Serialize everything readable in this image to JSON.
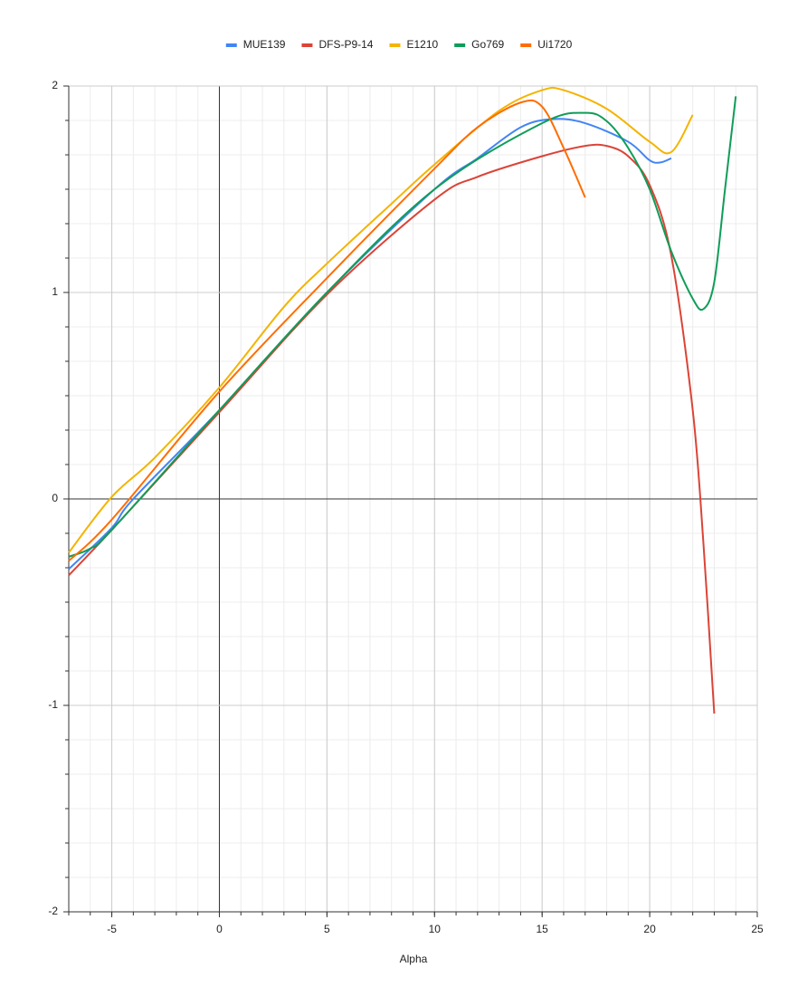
{
  "chart_data": {
    "type": "line",
    "x_label": "Alpha",
    "xlim": [
      -7,
      25
    ],
    "xticks": [
      -5,
      0,
      5,
      10,
      15,
      20,
      25
    ],
    "ylim": [
      -2,
      2
    ],
    "yticks": [
      -2,
      -1,
      0,
      1,
      2
    ],
    "grid": true,
    "minor_grid": true,
    "smooth": true,
    "legend": "top",
    "series": [
      {
        "name": "MUE139",
        "color": "#4285f4",
        "x": [
          -7,
          -5,
          -4,
          0,
          5,
          10,
          12,
          14,
          15.5,
          17,
          19,
          20,
          20.5,
          21
        ],
        "values": [
          -0.34,
          -0.14,
          0,
          0.43,
          1.0,
          1.5,
          1.65,
          1.8,
          1.84,
          1.82,
          1.73,
          1.64,
          1.63,
          1.65
        ]
      },
      {
        "name": "DFS-P9-14",
        "color": "#db4437",
        "x": [
          -7,
          -5,
          0,
          5,
          10,
          12,
          15,
          17,
          18,
          19,
          20,
          21,
          22,
          22.5,
          23
        ],
        "values": [
          -0.37,
          -0.15,
          0.42,
          0.99,
          1.45,
          1.56,
          1.66,
          1.71,
          1.71,
          1.66,
          1.52,
          1.18,
          0.43,
          -0.22,
          -1.04
        ]
      },
      {
        "name": "E1210",
        "color": "#f4b400",
        "x": [
          -7,
          -5,
          -3,
          0,
          3,
          5,
          8,
          10,
          13,
          15,
          16,
          18,
          20,
          21,
          22
        ],
        "values": [
          -0.26,
          0.01,
          0.2,
          0.54,
          0.93,
          1.14,
          1.43,
          1.62,
          1.88,
          1.98,
          1.98,
          1.89,
          1.73,
          1.68,
          1.86
        ]
      },
      {
        "name": "Go769",
        "color": "#0f9d58",
        "x": [
          -7,
          -6,
          -5,
          0,
          5,
          10,
          15,
          17,
          18,
          19,
          20,
          21,
          22,
          22.5,
          23,
          23.5,
          24
        ],
        "values": [
          -0.28,
          -0.24,
          -0.15,
          0.43,
          1.0,
          1.5,
          1.82,
          1.87,
          1.83,
          1.7,
          1.5,
          1.2,
          0.97,
          0.92,
          1.05,
          1.5,
          1.95
        ]
      },
      {
        "name": "Ui1720",
        "color": "#ff6d00",
        "x": [
          -7,
          -5,
          0,
          5,
          10,
          12,
          14,
          15,
          16,
          17
        ],
        "values": [
          -0.3,
          -0.1,
          0.52,
          1.07,
          1.6,
          1.8,
          1.92,
          1.9,
          1.7,
          1.46
        ]
      }
    ]
  }
}
